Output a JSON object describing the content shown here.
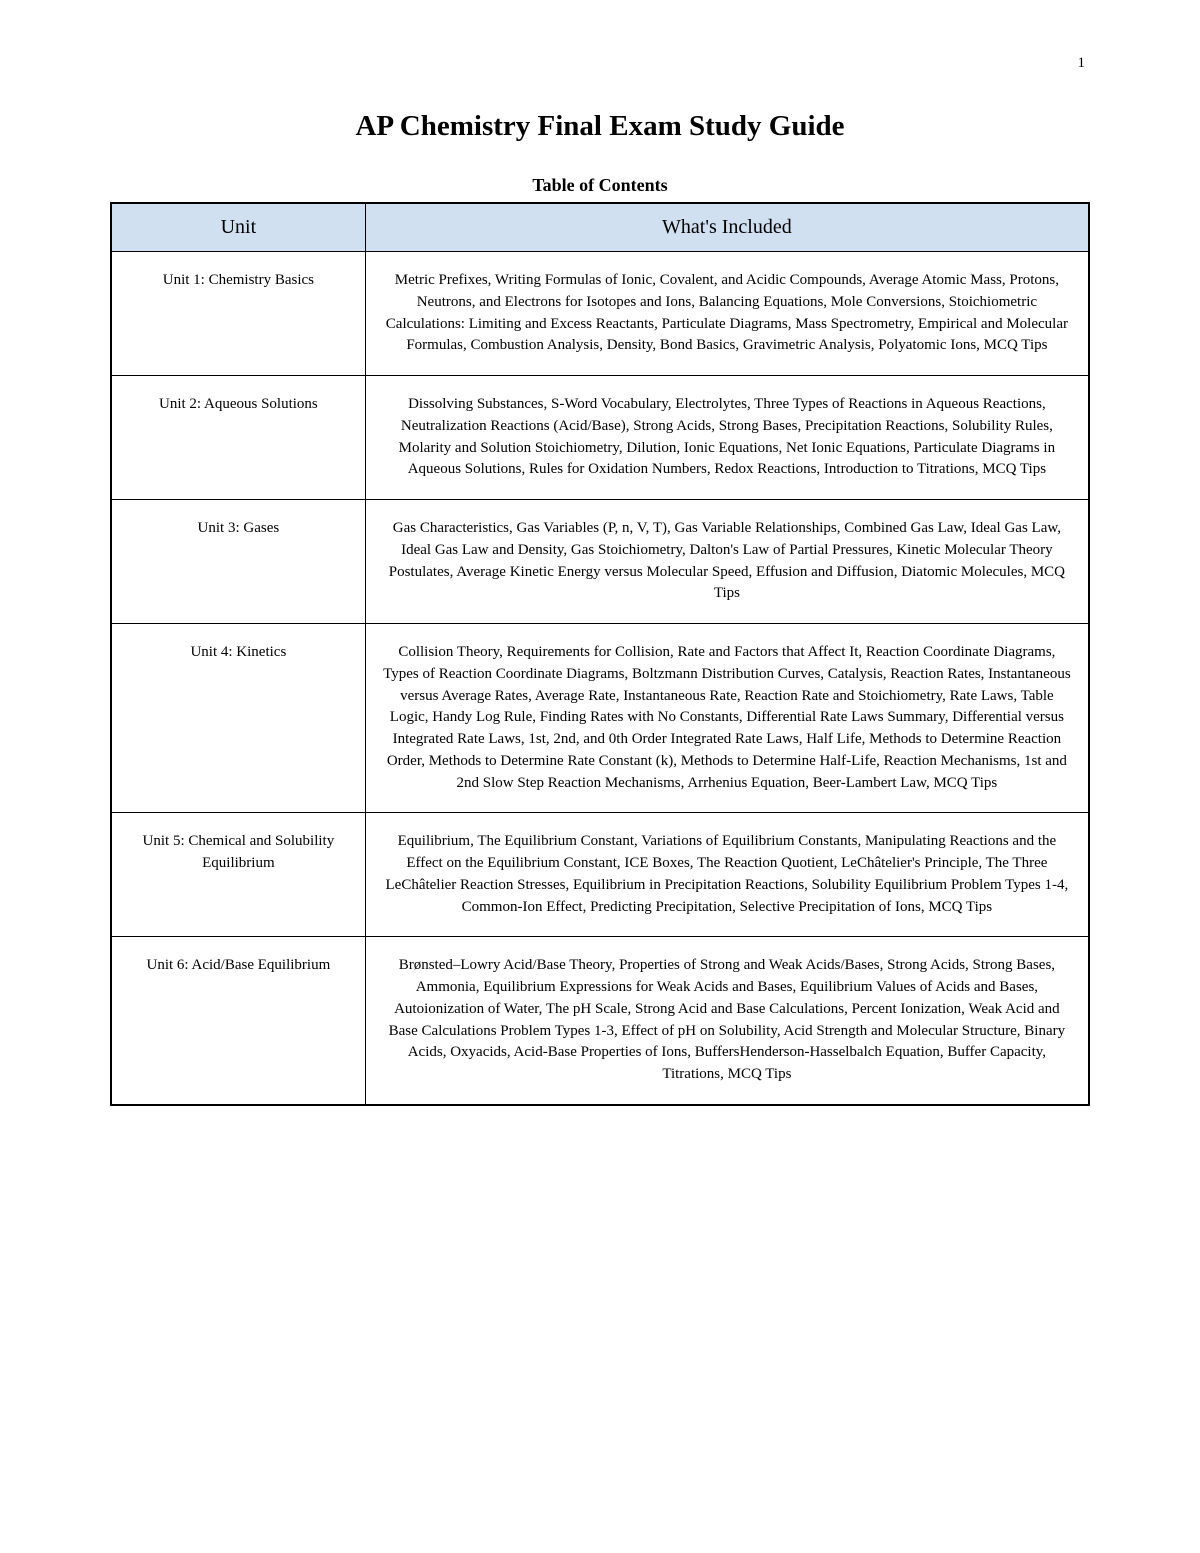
{
  "page_number": "1",
  "main_title": "AP Chemistry Final Exam Study Guide",
  "toc_title": "Table of Contents",
  "headers": {
    "unit": "Unit",
    "included": "What's Included"
  },
  "rows": [
    {
      "unit": "Unit 1: Chemistry Basics",
      "content": "Metric Prefixes, Writing Formulas of Ionic, Covalent, and Acidic Compounds, Average Atomic Mass, Protons, Neutrons, and Electrons for Isotopes and Ions, Balancing Equations, Mole Conversions, Stoichiometric Calculations: Limiting and Excess Reactants, Particulate Diagrams, Mass Spectrometry, Empirical and Molecular Formulas, Combustion Analysis, Density, Bond Basics, Gravimetric Analysis, Polyatomic Ions, MCQ Tips"
    },
    {
      "unit": "Unit 2: Aqueous Solutions",
      "content": "Dissolving Substances, S-Word Vocabulary, Electrolytes, Three Types of Reactions in Aqueous Reactions, Neutralization Reactions (Acid/Base), Strong Acids, Strong Bases, Precipitation Reactions, Solubility Rules, Molarity and Solution Stoichiometry, Dilution, Ionic Equations, Net Ionic Equations, Particulate Diagrams in Aqueous Solutions, Rules for Oxidation Numbers, Redox Reactions, Introduction to Titrations, MCQ Tips"
    },
    {
      "unit": "Unit 3: Gases",
      "content": "Gas Characteristics, Gas Variables (P, n, V, T), Gas Variable Relationships, Combined Gas Law, Ideal Gas Law, Ideal Gas Law and Density, Gas Stoichiometry, Dalton's Law of Partial Pressures, Kinetic Molecular Theory Postulates, Average Kinetic Energy versus Molecular Speed, Effusion and Diffusion, Diatomic Molecules, MCQ Tips"
    },
    {
      "unit": "Unit 4: Kinetics",
      "content": "Collision Theory, Requirements for Collision, Rate and Factors that Affect It, Reaction Coordinate Diagrams, Types of Reaction Coordinate Diagrams, Boltzmann Distribution Curves, Catalysis, Reaction Rates, Instantaneous versus Average Rates, Average Rate, Instantaneous Rate, Reaction Rate and Stoichiometry, Rate Laws, Table Logic, Handy Log Rule, Finding Rates with No Constants, Differential Rate Laws Summary, Differential versus Integrated Rate Laws, 1st, 2nd, and 0th Order Integrated Rate Laws, Half Life, Methods to Determine Reaction Order, Methods to Determine Rate Constant (k), Methods to Determine Half-Life, Reaction Mechanisms, 1st and 2nd Slow Step Reaction Mechanisms, Arrhenius Equation, Beer-Lambert Law, MCQ Tips"
    },
    {
      "unit": "Unit 5: Chemical and Solubility Equilibrium",
      "content": "Equilibrium, The Equilibrium Constant, Variations of Equilibrium Constants, Manipulating Reactions and the Effect on the Equilibrium Constant, ICE Boxes, The Reaction Quotient, LeChâtelier's Principle, The Three LeChâtelier Reaction Stresses, Equilibrium in Precipitation Reactions, Solubility Equilibrium Problem Types 1-4, Common-Ion Effect, Predicting Precipitation, Selective Precipitation of Ions, MCQ Tips"
    },
    {
      "unit": "Unit 6: Acid/Base Equilibrium",
      "content": "Brønsted–Lowry Acid/Base Theory, Properties of Strong and Weak Acids/Bases, Strong Acids, Strong Bases, Ammonia, Equilibrium Expressions for Weak Acids and Bases, Equilibrium Values of Acids and Bases, Autoionization of Water, The pH Scale, Strong Acid and Base Calculations, Percent Ionization, Weak Acid and Base Calculations Problem Types 1-3, Effect of pH on Solubility, Acid Strength and Molecular Structure, Binary Acids, Oxyacids, Acid-Base Properties of Ions, BuffersHenderson-Hasselbalch Equation, Buffer Capacity, Titrations, MCQ Tips"
    }
  ]
}
